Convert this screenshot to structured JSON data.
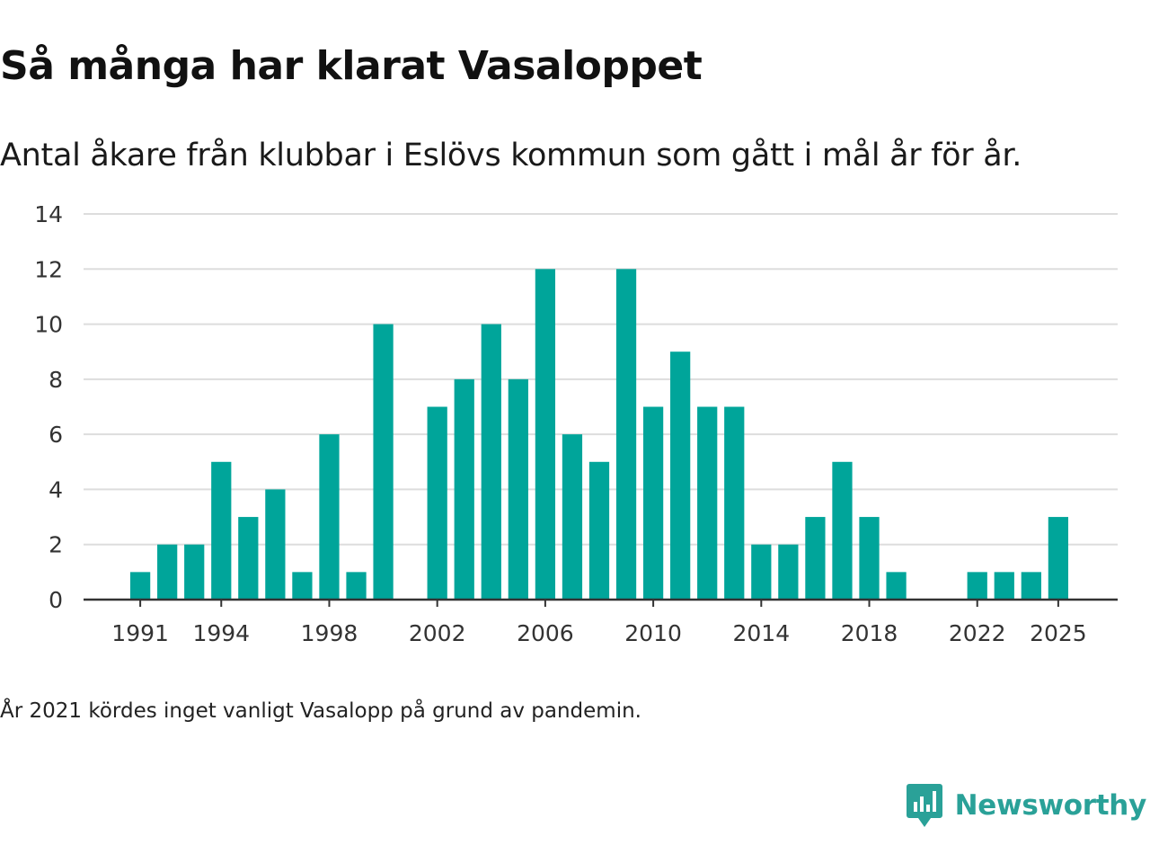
{
  "header": {
    "title": "Så många har klarat Vasaloppet",
    "subtitle": "Antal åkare från klubbar i Eslövs kommun som gått i mål år för år."
  },
  "footer": {
    "note": "År 2021 kördes inget vanligt Vasalopp på grund av pandemin."
  },
  "brand": {
    "name": "Newsworthy",
    "icon": "newsworthy-logo-icon",
    "color": "#2aa198"
  },
  "colors": {
    "bar": "#00a59a",
    "grid": "#dddddd",
    "axis": "#333333"
  },
  "chart_data": {
    "type": "bar",
    "title": "Så många har klarat Vasaloppet",
    "xlabel": "",
    "ylabel": "",
    "ylim": [
      0,
      14
    ],
    "yticks": [
      0,
      2,
      4,
      6,
      8,
      10,
      12,
      14
    ],
    "xlim": [
      1988.9,
      2027.2
    ],
    "xticks": [
      1991,
      1994,
      1998,
      2002,
      2006,
      2010,
      2014,
      2018,
      2022,
      2025
    ],
    "grid": true,
    "categories": [
      1991,
      1992,
      1993,
      1994,
      1995,
      1996,
      1997,
      1998,
      1999,
      2000,
      2001,
      2002,
      2003,
      2004,
      2005,
      2006,
      2007,
      2008,
      2009,
      2010,
      2011,
      2012,
      2013,
      2014,
      2015,
      2016,
      2017,
      2018,
      2019,
      2020,
      2021,
      2022,
      2023,
      2024,
      2025
    ],
    "values": [
      1,
      2,
      2,
      5,
      3,
      4,
      1,
      6,
      1,
      10,
      0,
      7,
      8,
      10,
      8,
      12,
      6,
      5,
      12,
      7,
      9,
      7,
      7,
      2,
      2,
      3,
      5,
      3,
      1,
      0,
      0,
      1,
      1,
      1,
      3
    ]
  }
}
